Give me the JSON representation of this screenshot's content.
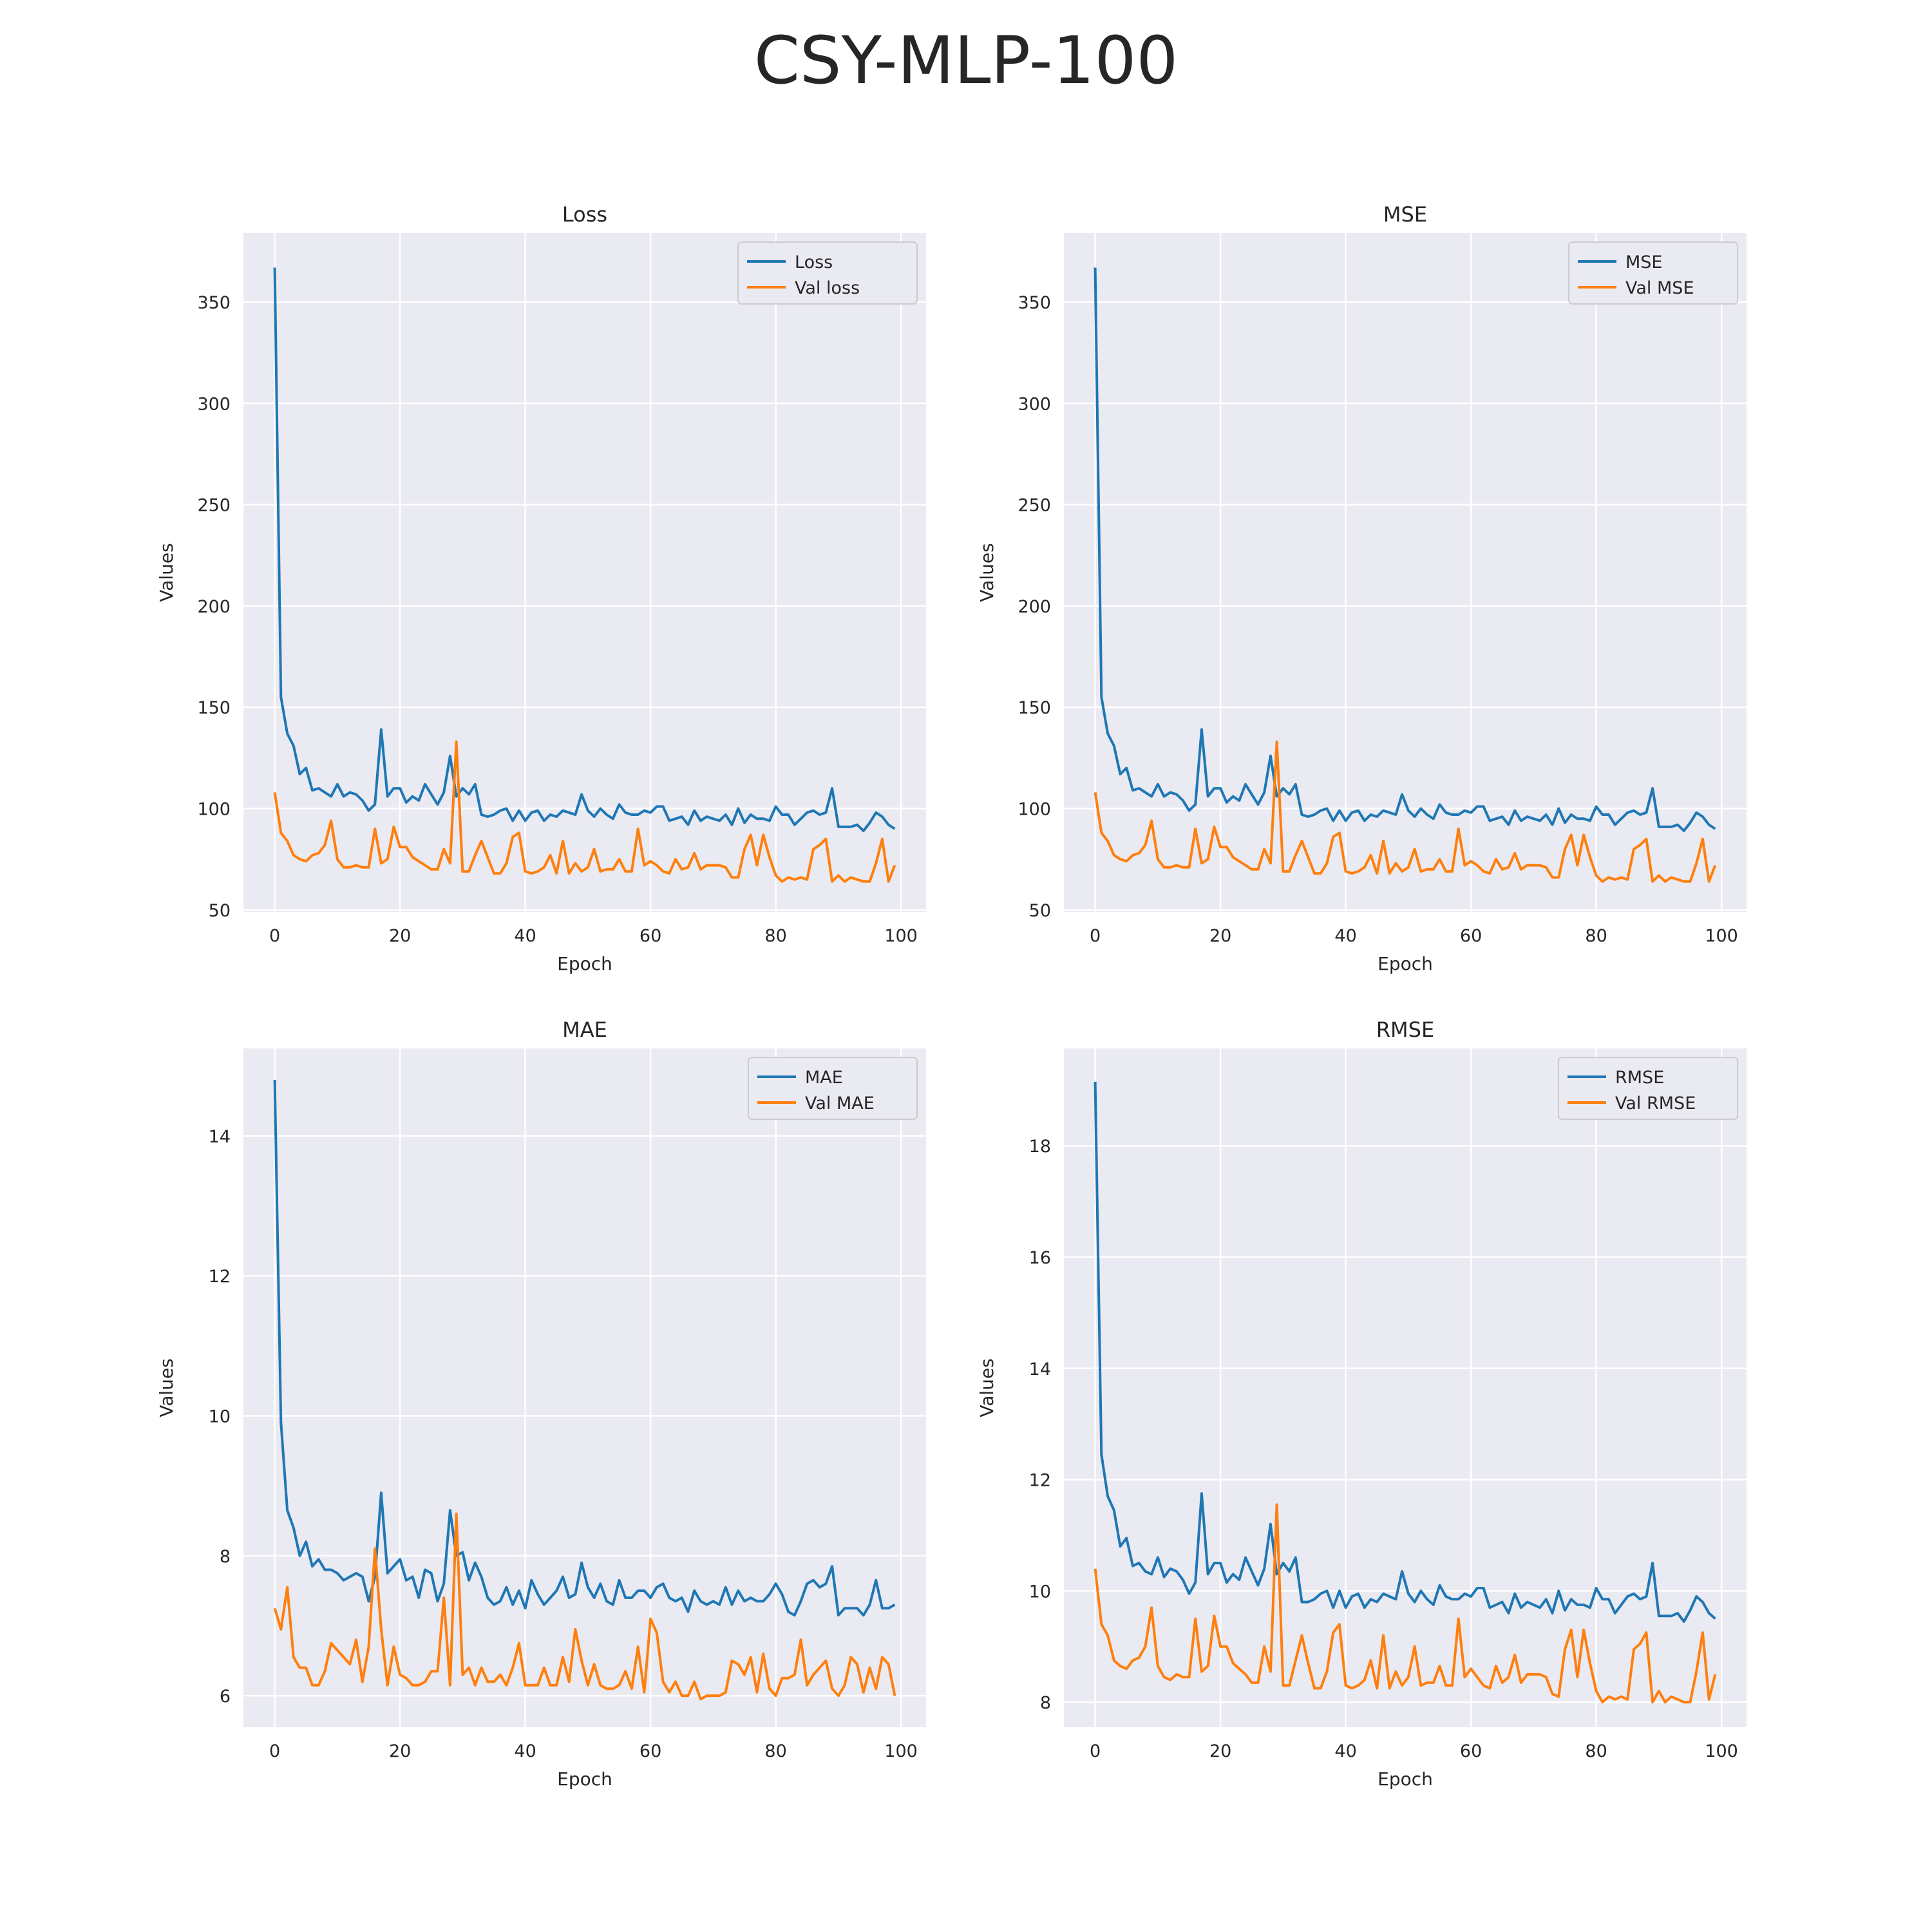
{
  "figure": {
    "suptitle": "CSY-MLP-100"
  },
  "colors": {
    "train": "#1f77b4",
    "val": "#ff7f0e",
    "axes_bg": "#eaeaf2",
    "grid": "#ffffff",
    "text": "#262626"
  },
  "chart_data": [
    {
      "type": "line",
      "title": "Loss",
      "xlabel": "Epoch",
      "ylabel": "Values",
      "xlim": [
        -5,
        104
      ],
      "xticks": [
        0,
        20,
        40,
        60,
        80,
        100
      ],
      "ylim": [
        49,
        384
      ],
      "yticks": [
        50,
        100,
        150,
        200,
        250,
        300,
        350
      ],
      "legend": "top-right",
      "grid": true,
      "series": [
        {
          "name": "Loss",
          "color": "#1f77b4",
          "values": [
            367,
            155,
            137,
            131,
            117,
            120,
            109,
            110,
            108,
            106,
            112,
            106,
            108,
            107,
            104,
            99,
            102,
            139,
            106,
            110,
            110,
            103,
            106,
            104,
            112,
            107,
            102,
            108,
            126,
            106,
            110,
            107,
            112,
            97,
            96,
            97,
            99,
            100,
            94,
            99,
            94,
            98,
            99,
            94,
            97,
            96,
            99,
            98,
            97,
            107,
            99,
            96,
            100,
            97,
            95,
            102,
            98,
            97,
            97,
            99,
            98,
            101,
            101,
            94,
            95,
            96,
            92,
            99,
            94,
            96,
            95,
            94,
            97,
            92,
            100,
            93,
            97,
            95,
            95,
            94,
            101,
            97,
            97,
            92,
            95,
            98,
            99,
            97,
            98,
            110,
            91,
            91,
            91,
            92,
            89,
            93,
            98,
            96,
            92,
            90
          ]
        },
        {
          "name": "Val loss",
          "color": "#ff7f0e",
          "values": [
            108,
            88,
            84,
            77,
            75,
            74,
            77,
            78,
            82,
            94,
            75,
            71,
            71,
            72,
            71,
            71,
            90,
            73,
            75,
            91,
            81,
            81,
            76,
            74,
            72,
            70,
            70,
            80,
            73,
            133,
            69,
            69,
            77,
            84,
            76,
            68,
            68,
            73,
            86,
            88,
            69,
            68,
            69,
            71,
            77,
            68,
            84,
            68,
            73,
            69,
            71,
            80,
            69,
            70,
            70,
            75,
            69,
            69,
            90,
            72,
            74,
            72,
            69,
            68,
            75,
            70,
            71,
            78,
            70,
            72,
            72,
            72,
            71,
            66,
            66,
            80,
            87,
            72,
            87,
            76,
            67,
            64,
            66,
            65,
            66,
            65,
            80,
            82,
            85,
            64,
            67,
            64,
            66,
            65,
            64,
            64,
            73,
            85,
            64,
            72
          ]
        }
      ]
    },
    {
      "type": "line",
      "title": "MSE",
      "xlabel": "Epoch",
      "ylabel": "Values",
      "xlim": [
        -5,
        104
      ],
      "xticks": [
        0,
        20,
        40,
        60,
        80,
        100
      ],
      "ylim": [
        49,
        384
      ],
      "yticks": [
        50,
        100,
        150,
        200,
        250,
        300,
        350
      ],
      "legend": "top-right",
      "grid": true,
      "series": [
        {
          "name": "MSE",
          "color": "#1f77b4",
          "values": [
            367,
            155,
            137,
            131,
            117,
            120,
            109,
            110,
            108,
            106,
            112,
            106,
            108,
            107,
            104,
            99,
            102,
            139,
            106,
            110,
            110,
            103,
            106,
            104,
            112,
            107,
            102,
            108,
            126,
            106,
            110,
            107,
            112,
            97,
            96,
            97,
            99,
            100,
            94,
            99,
            94,
            98,
            99,
            94,
            97,
            96,
            99,
            98,
            97,
            107,
            99,
            96,
            100,
            97,
            95,
            102,
            98,
            97,
            97,
            99,
            98,
            101,
            101,
            94,
            95,
            96,
            92,
            99,
            94,
            96,
            95,
            94,
            97,
            92,
            100,
            93,
            97,
            95,
            95,
            94,
            101,
            97,
            97,
            92,
            95,
            98,
            99,
            97,
            98,
            110,
            91,
            91,
            91,
            92,
            89,
            93,
            98,
            96,
            92,
            90
          ]
        },
        {
          "name": "Val MSE",
          "color": "#ff7f0e",
          "values": [
            108,
            88,
            84,
            77,
            75,
            74,
            77,
            78,
            82,
            94,
            75,
            71,
            71,
            72,
            71,
            71,
            90,
            73,
            75,
            91,
            81,
            81,
            76,
            74,
            72,
            70,
            70,
            80,
            73,
            133,
            69,
            69,
            77,
            84,
            76,
            68,
            68,
            73,
            86,
            88,
            69,
            68,
            69,
            71,
            77,
            68,
            84,
            68,
            73,
            69,
            71,
            80,
            69,
            70,
            70,
            75,
            69,
            69,
            90,
            72,
            74,
            72,
            69,
            68,
            75,
            70,
            71,
            78,
            70,
            72,
            72,
            72,
            71,
            66,
            66,
            80,
            87,
            72,
            87,
            76,
            67,
            64,
            66,
            65,
            66,
            65,
            80,
            82,
            85,
            64,
            67,
            64,
            66,
            65,
            64,
            64,
            73,
            85,
            64,
            72
          ]
        }
      ]
    },
    {
      "type": "line",
      "title": "MAE",
      "xlabel": "Epoch",
      "ylabel": "Values",
      "xlim": [
        -5,
        104
      ],
      "xticks": [
        0,
        20,
        40,
        60,
        80,
        100
      ],
      "ylim": [
        5.55,
        15.25
      ],
      "yticks": [
        6,
        8,
        10,
        12,
        14
      ],
      "legend": "top-right",
      "grid": true,
      "series": [
        {
          "name": "MAE",
          "color": "#1f77b4",
          "values": [
            14.8,
            9.9,
            8.65,
            8.4,
            8.0,
            8.2,
            7.85,
            7.95,
            7.8,
            7.8,
            7.75,
            7.65,
            7.7,
            7.75,
            7.7,
            7.35,
            7.7,
            8.9,
            7.75,
            7.85,
            7.95,
            7.65,
            7.7,
            7.4,
            7.8,
            7.75,
            7.35,
            7.6,
            8.65,
            8.0,
            8.05,
            7.65,
            7.9,
            7.7,
            7.4,
            7.3,
            7.35,
            7.55,
            7.3,
            7.5,
            7.25,
            7.65,
            7.45,
            7.3,
            7.4,
            7.5,
            7.7,
            7.4,
            7.45,
            7.9,
            7.55,
            7.4,
            7.6,
            7.35,
            7.3,
            7.65,
            7.4,
            7.4,
            7.5,
            7.5,
            7.4,
            7.55,
            7.6,
            7.4,
            7.35,
            7.4,
            7.2,
            7.5,
            7.35,
            7.3,
            7.35,
            7.3,
            7.55,
            7.3,
            7.5,
            7.35,
            7.4,
            7.35,
            7.35,
            7.45,
            7.6,
            7.45,
            7.2,
            7.15,
            7.35,
            7.6,
            7.65,
            7.55,
            7.6,
            7.85,
            7.15,
            7.25,
            7.25,
            7.25,
            7.15,
            7.3,
            7.65,
            7.25,
            7.25,
            7.3
          ]
        },
        {
          "name": "Val MAE",
          "color": "#ff7f0e",
          "values": [
            7.25,
            6.95,
            7.55,
            6.55,
            6.4,
            6.4,
            6.15,
            6.15,
            6.35,
            6.75,
            6.65,
            6.55,
            6.45,
            6.8,
            6.2,
            6.7,
            8.1,
            6.95,
            6.15,
            6.7,
            6.3,
            6.25,
            6.15,
            6.15,
            6.2,
            6.35,
            6.35,
            7.4,
            6.15,
            8.6,
            6.3,
            6.4,
            6.15,
            6.4,
            6.2,
            6.2,
            6.3,
            6.15,
            6.4,
            6.75,
            6.15,
            6.15,
            6.15,
            6.4,
            6.15,
            6.15,
            6.55,
            6.2,
            6.95,
            6.5,
            6.15,
            6.45,
            6.15,
            6.1,
            6.1,
            6.15,
            6.35,
            6.1,
            6.7,
            6.05,
            7.1,
            6.9,
            6.2,
            6.05,
            6.2,
            6.0,
            6.0,
            6.2,
            5.95,
            6.0,
            6.0,
            6.0,
            6.05,
            6.5,
            6.45,
            6.3,
            6.55,
            6.05,
            6.6,
            6.1,
            6.0,
            6.25,
            6.25,
            6.3,
            6.8,
            6.15,
            6.3,
            6.4,
            6.5,
            6.1,
            6.0,
            6.15,
            6.55,
            6.45,
            6.05,
            6.4,
            6.1,
            6.55,
            6.45,
            6.0
          ]
        }
      ]
    },
    {
      "type": "line",
      "title": "RMSE",
      "xlabel": "Epoch",
      "ylabel": "Values",
      "xlim": [
        -5,
        104
      ],
      "xticks": [
        0,
        20,
        40,
        60,
        80,
        100
      ],
      "ylim": [
        7.55,
        19.75
      ],
      "yticks": [
        8,
        10,
        12,
        14,
        16,
        18
      ],
      "legend": "top-right",
      "grid": true,
      "series": [
        {
          "name": "RMSE",
          "color": "#1f77b4",
          "values": [
            19.15,
            12.45,
            11.7,
            11.45,
            10.8,
            10.95,
            10.45,
            10.5,
            10.35,
            10.3,
            10.6,
            10.25,
            10.4,
            10.35,
            10.2,
            9.95,
            10.15,
            11.75,
            10.3,
            10.5,
            10.5,
            10.15,
            10.3,
            10.2,
            10.6,
            10.35,
            10.1,
            10.4,
            11.2,
            10.3,
            10.5,
            10.35,
            10.6,
            9.8,
            9.8,
            9.85,
            9.95,
            10.0,
            9.7,
            10.0,
            9.7,
            9.9,
            9.95,
            9.7,
            9.85,
            9.8,
            9.95,
            9.9,
            9.85,
            10.35,
            9.95,
            9.8,
            10.0,
            9.85,
            9.75,
            10.1,
            9.9,
            9.85,
            9.85,
            9.95,
            9.9,
            10.05,
            10.05,
            9.7,
            9.75,
            9.8,
            9.6,
            9.95,
            9.7,
            9.8,
            9.75,
            9.7,
            9.85,
            9.6,
            10.0,
            9.65,
            9.85,
            9.75,
            9.75,
            9.7,
            10.05,
            9.85,
            9.85,
            9.6,
            9.75,
            9.9,
            9.95,
            9.85,
            9.9,
            10.5,
            9.55,
            9.55,
            9.55,
            9.6,
            9.45,
            9.65,
            9.9,
            9.8,
            9.6,
            9.5
          ]
        },
        {
          "name": "Val RMSE",
          "color": "#ff7f0e",
          "values": [
            10.4,
            9.4,
            9.2,
            8.75,
            8.65,
            8.6,
            8.75,
            8.8,
            9.0,
            9.7,
            8.65,
            8.45,
            8.4,
            8.5,
            8.45,
            8.45,
            9.5,
            8.55,
            8.65,
            9.55,
            9.0,
            9.0,
            8.7,
            8.6,
            8.5,
            8.35,
            8.35,
            9.0,
            8.55,
            11.55,
            8.3,
            8.3,
            8.75,
            9.2,
            8.7,
            8.25,
            8.25,
            8.55,
            9.25,
            9.4,
            8.3,
            8.25,
            8.3,
            8.4,
            8.75,
            8.25,
            9.2,
            8.25,
            8.55,
            8.3,
            8.45,
            9.0,
            8.3,
            8.35,
            8.35,
            8.65,
            8.3,
            8.3,
            9.5,
            8.45,
            8.6,
            8.45,
            8.3,
            8.25,
            8.65,
            8.35,
            8.45,
            8.85,
            8.35,
            8.5,
            8.5,
            8.5,
            8.45,
            8.15,
            8.1,
            8.95,
            9.3,
            8.45,
            9.3,
            8.7,
            8.2,
            8.0,
            8.1,
            8.05,
            8.1,
            8.05,
            8.95,
            9.05,
            9.25,
            8.0,
            8.2,
            8.0,
            8.1,
            8.05,
            8.0,
            8.0,
            8.55,
            9.25,
            8.05,
            8.5
          ]
        }
      ]
    }
  ]
}
